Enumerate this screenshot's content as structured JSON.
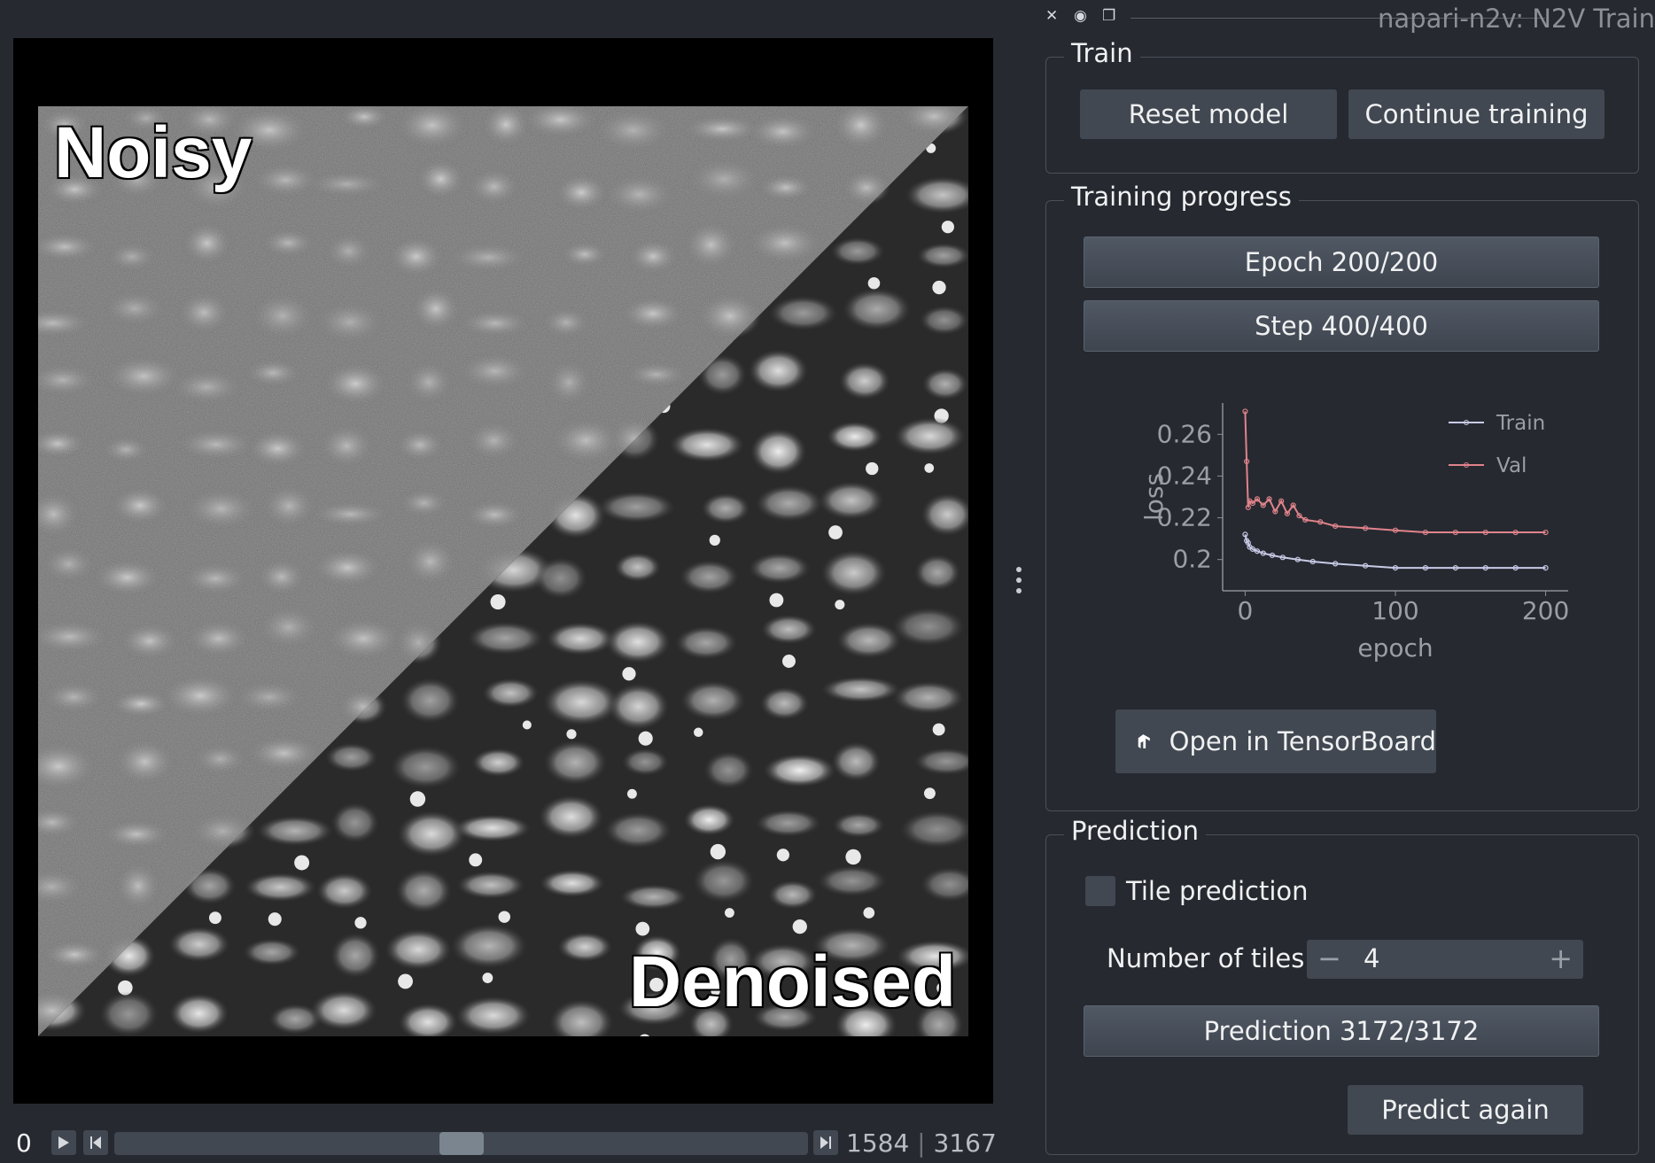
{
  "panel_title": "napari-n2v: N2V Train",
  "viewer": {
    "label_top": "Noisy",
    "label_bottom": "Denoised"
  },
  "dims": {
    "frame": "0",
    "position": "1584",
    "separator": "|",
    "total": "3167",
    "slider_fraction": 0.5
  },
  "train": {
    "title": "Train",
    "reset_label": "Reset model",
    "continue_label": "Continue training"
  },
  "progress": {
    "title": "Training progress",
    "epoch_label": "Epoch 200/200",
    "step_label": "Step 400/400",
    "tensorboard_label": "Open in TensorBoard"
  },
  "chart_data": {
    "type": "line",
    "title": "",
    "xlabel": "epoch",
    "ylabel": "loss",
    "xlim": [
      -15,
      215
    ],
    "ylim": [
      0.185,
      0.275
    ],
    "xticks": [
      0,
      100,
      200
    ],
    "yticks": [
      0.2,
      0.22,
      0.24,
      0.26
    ],
    "ytick_labels": [
      "0.2",
      "0.22",
      "0.24",
      "0.26"
    ],
    "legend": "top-right",
    "series": [
      {
        "name": "Train",
        "color": "#c8cbe6",
        "x": [
          0,
          1,
          2,
          3,
          5,
          8,
          12,
          18,
          25,
          35,
          45,
          60,
          80,
          100,
          120,
          140,
          160,
          180,
          200
        ],
        "y": [
          0.212,
          0.209,
          0.208,
          0.206,
          0.205,
          0.204,
          0.203,
          0.202,
          0.201,
          0.2,
          0.199,
          0.198,
          0.197,
          0.196,
          0.196,
          0.196,
          0.196,
          0.196,
          0.196
        ]
      },
      {
        "name": "Val",
        "color": "#e0838b",
        "x": [
          0,
          1,
          2,
          3,
          5,
          8,
          12,
          16,
          20,
          24,
          28,
          32,
          36,
          40,
          50,
          60,
          80,
          100,
          120,
          140,
          160,
          180,
          200
        ],
        "y": [
          0.271,
          0.247,
          0.225,
          0.228,
          0.227,
          0.229,
          0.226,
          0.229,
          0.223,
          0.228,
          0.222,
          0.226,
          0.221,
          0.219,
          0.218,
          0.216,
          0.215,
          0.214,
          0.213,
          0.213,
          0.213,
          0.213,
          0.213
        ]
      }
    ]
  },
  "prediction": {
    "title": "Prediction",
    "tile_label": "Tile prediction",
    "tiles_label": "Number of tiles",
    "tiles_value": "4",
    "minus": "−",
    "plus": "+",
    "progress_label": "Prediction 3172/3172",
    "predict_label": "Predict again"
  }
}
